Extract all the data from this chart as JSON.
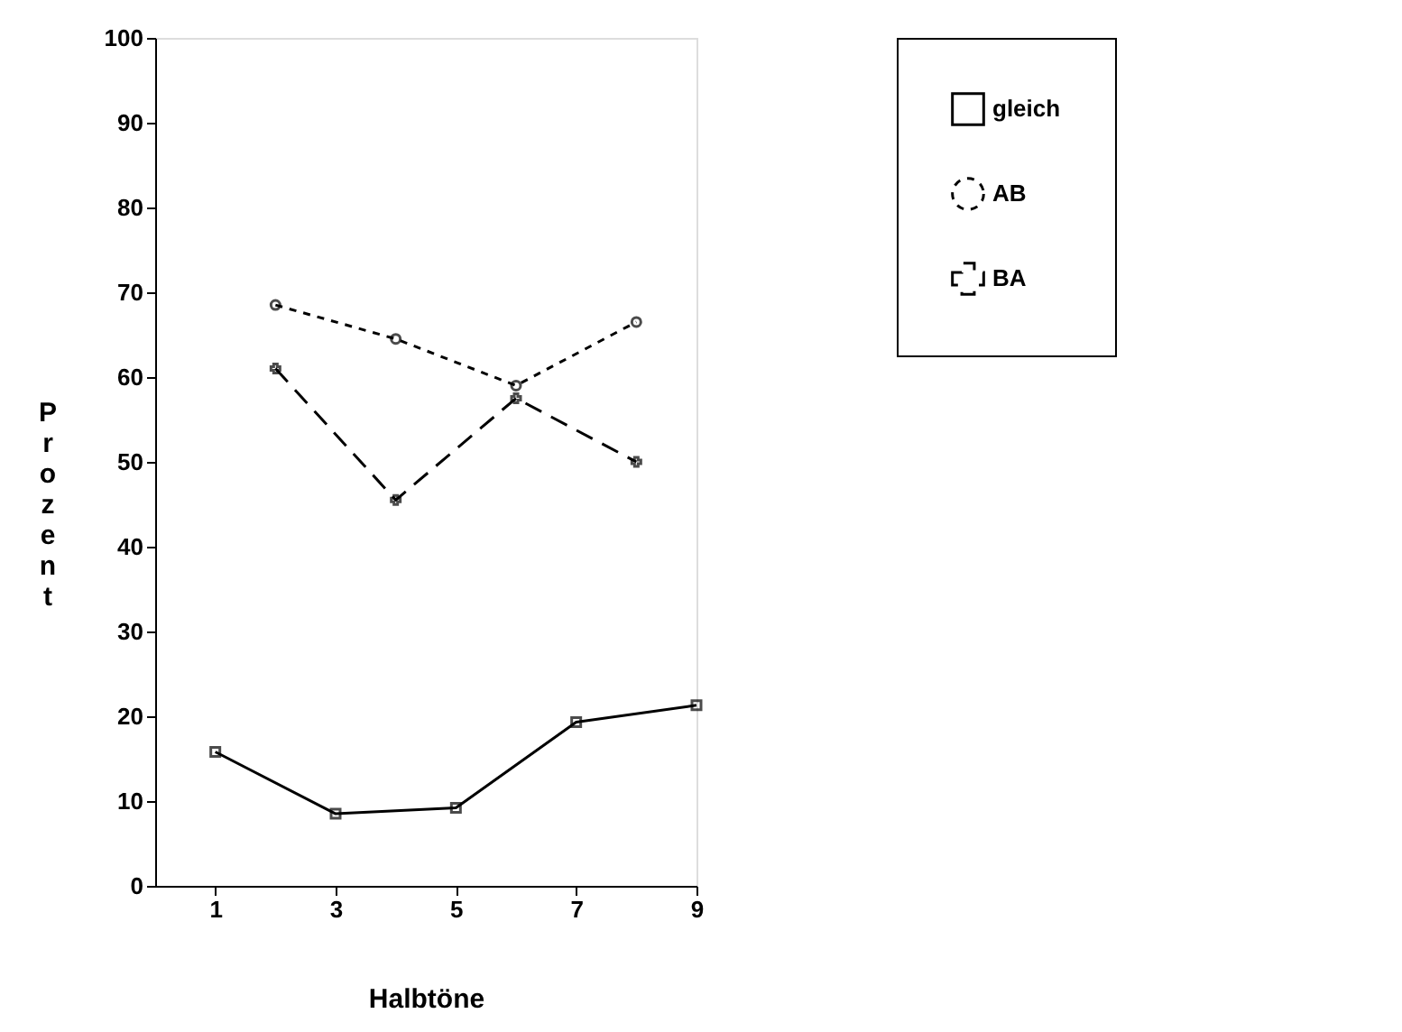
{
  "chart_data": {
    "type": "line",
    "xlabel": "Halbtöne",
    "ylabel": "Prozent",
    "xlim": [
      0,
      9
    ],
    "xticks": [
      1,
      3,
      5,
      7,
      9
    ],
    "ylim": [
      0,
      100
    ],
    "yticks": [
      0,
      10,
      20,
      30,
      40,
      50,
      60,
      70,
      80,
      90,
      100
    ],
    "grid": false,
    "legend": "right",
    "series": [
      {
        "name": "gleich",
        "color": "#000000",
        "x": [
          1,
          3,
          5,
          7,
          9
        ],
        "values": [
          15.8,
          8.5,
          9.2,
          19.3,
          21.3
        ],
        "marker": "square",
        "line_style": "solid"
      },
      {
        "name": "AB",
        "color": "#000000",
        "x": [
          2,
          4,
          6,
          8
        ],
        "values": [
          68.5,
          64.5,
          59,
          66.5
        ],
        "marker": "circle",
        "line_style": "dotted"
      },
      {
        "name": "BA",
        "color": "#000000",
        "x": [
          2,
          4,
          6,
          8
        ],
        "values": [
          61,
          45.5,
          57.5,
          50
        ],
        "marker": "cross",
        "line_style": "dashed"
      }
    ]
  }
}
